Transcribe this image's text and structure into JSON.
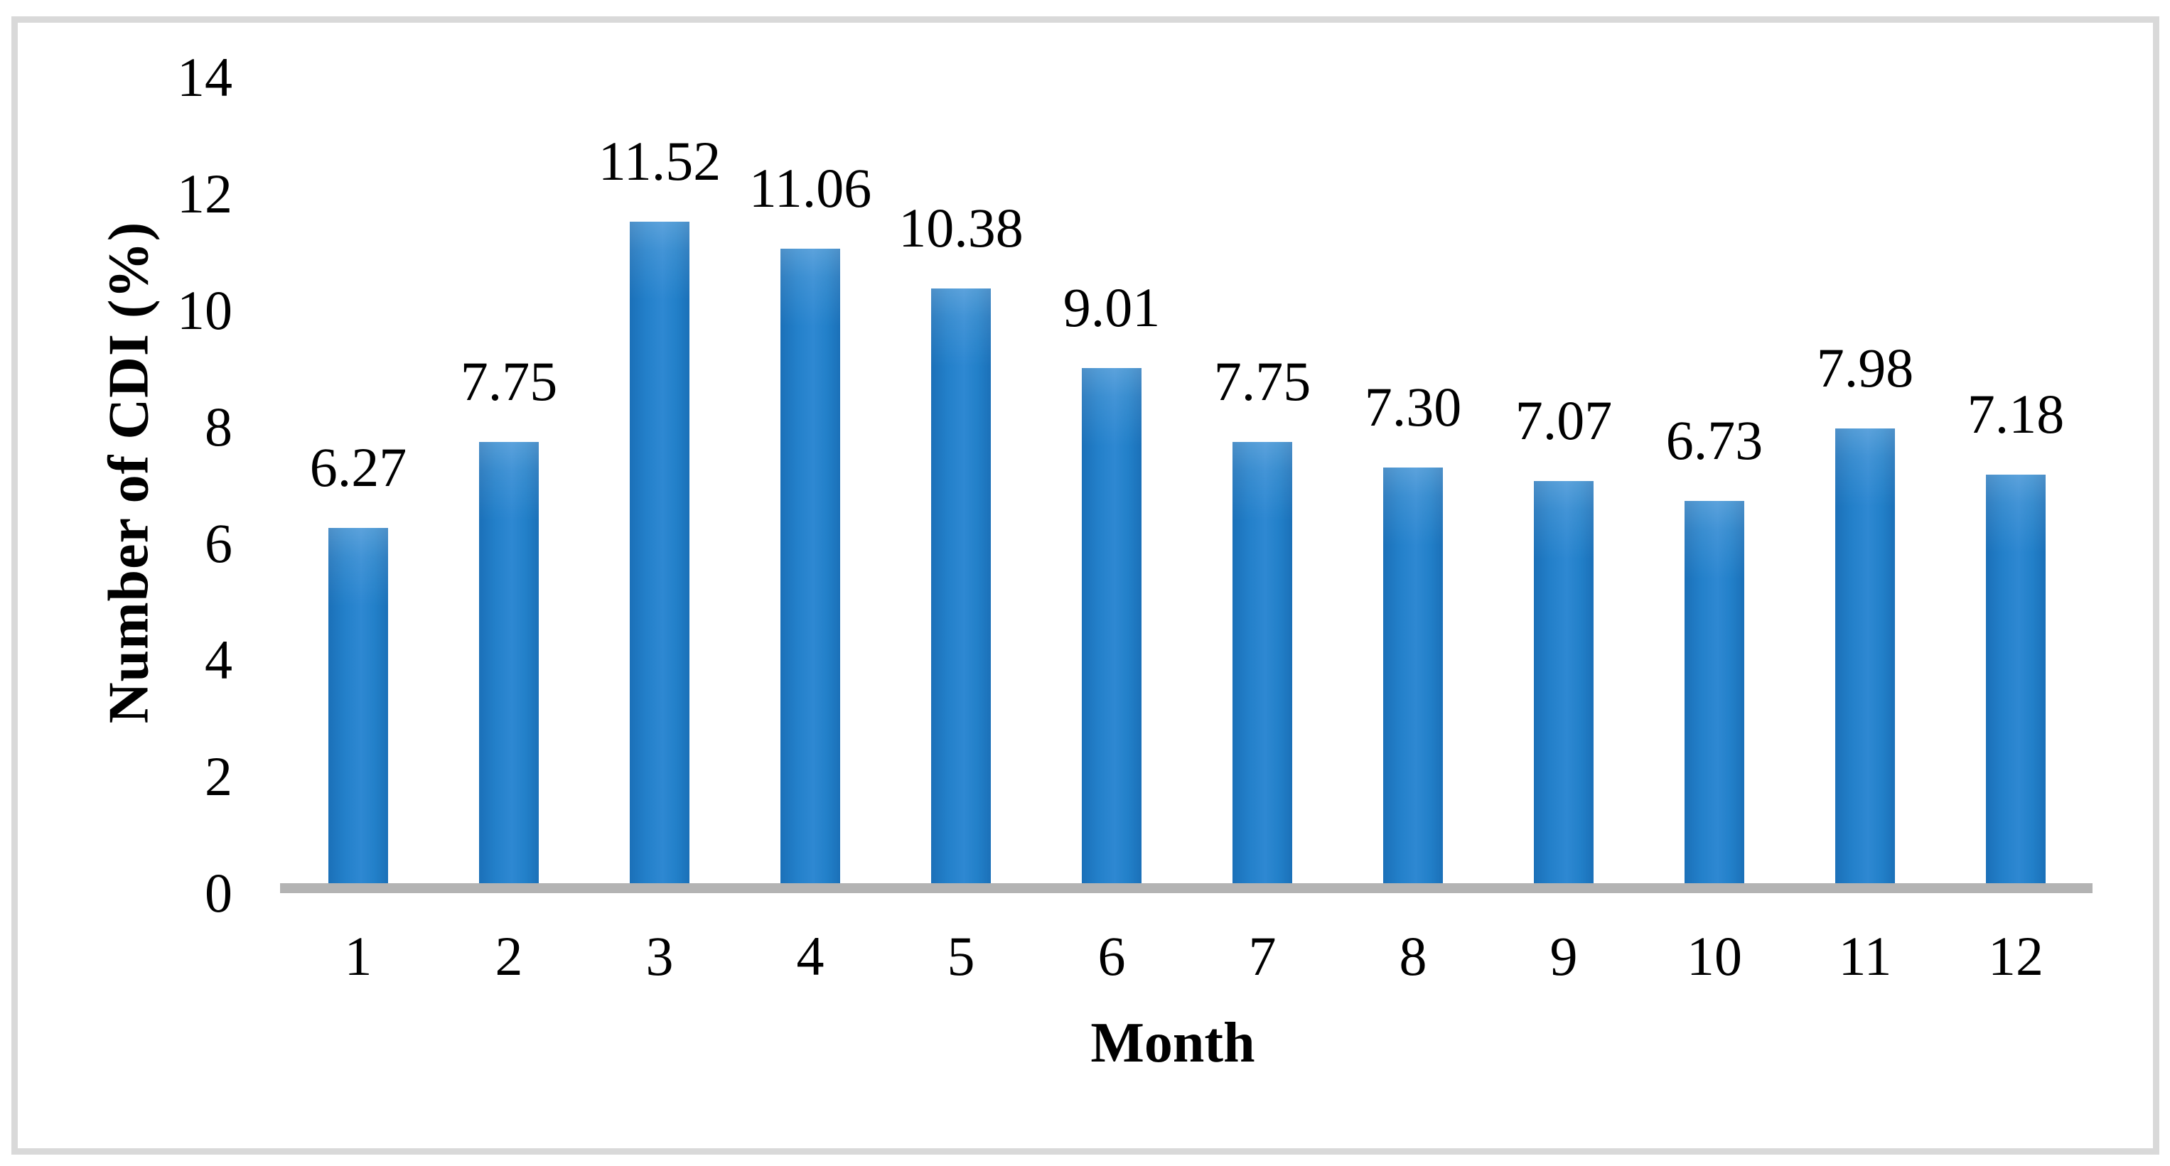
{
  "figure": {
    "background": "#ffffff",
    "frame_border_color": "#d9d9d9"
  },
  "chart_data": {
    "type": "bar",
    "title": "",
    "categories": [
      "1",
      "2",
      "3",
      "4",
      "5",
      "6",
      "7",
      "8",
      "9",
      "10",
      "11",
      "12"
    ],
    "values": [
      6.27,
      7.75,
      11.52,
      11.06,
      10.38,
      9.01,
      7.75,
      7.3,
      7.07,
      6.73,
      7.98,
      7.18
    ],
    "data_labels": [
      "6.27",
      "7.75",
      "11.52",
      "11.06",
      "10.38",
      "9.01",
      "7.75",
      "7.30",
      "7.07",
      "6.73",
      "7.98",
      "7.18"
    ],
    "xlabel": "Month",
    "ylabel": "Number of CDI (%)",
    "ylim": [
      0,
      14
    ],
    "ytick_interval": 2,
    "yticks": [
      14,
      12,
      10,
      8,
      6,
      4,
      2,
      0
    ],
    "grid": false,
    "legend": "none",
    "bar_color": "#1f7ac4",
    "axis_line_color": "#b3b3b3",
    "text_color": "#000000"
  }
}
